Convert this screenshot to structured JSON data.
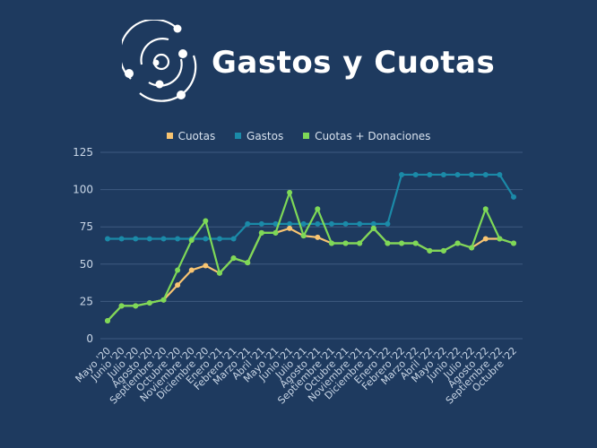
{
  "title": "Gastos y Cuotas",
  "chart_data": {
    "type": "line",
    "title": "Gastos y Cuotas",
    "legend_position": "top",
    "grid": true,
    "ylim": [
      0,
      125
    ],
    "yticks": [
      0,
      25,
      50,
      75,
      100,
      125
    ],
    "categories": [
      "Mayo '20",
      "Junio '20",
      "Julio '20",
      "Agosto '20",
      "Septiembre '20",
      "Octubre '20",
      "Noviembre '20",
      "Diciembre '20",
      "Enero '21",
      "Febrero '21",
      "Marzo '21",
      "Abril '21",
      "Mayo '21",
      "Junio '21",
      "Julio '21",
      "Agosto '21",
      "Septiembre '21",
      "Octubre '21",
      "Noviembre '21",
      "Diciembre '21",
      "Enero '22",
      "Febrero '22",
      "Marzo '22",
      "Abril '22",
      "Mayo '22",
      "Junio '22",
      "Julio '22",
      "Agosto '22",
      "Septiembre '22",
      "Octubre '22"
    ],
    "series": [
      {
        "name": "Gastos",
        "color": "#1b8aa8",
        "values": [
          67,
          67,
          67,
          67,
          67,
          67,
          67,
          67,
          67,
          67,
          77,
          77,
          77,
          77,
          77,
          77,
          77,
          77,
          77,
          77,
          77,
          110,
          110,
          110,
          110,
          110,
          110,
          110,
          110,
          95
        ]
      },
      {
        "name": "Cuotas",
        "color": "#f8c471",
        "values": [
          12,
          22,
          22,
          24,
          26,
          36,
          46,
          49,
          44,
          54,
          51,
          71,
          71,
          74,
          69,
          68,
          64,
          64,
          64,
          74,
          64,
          64,
          64,
          59,
          59,
          64,
          61,
          67,
          67,
          64
        ]
      },
      {
        "name": "Cuotas + Donaciones",
        "color": "#7ed957",
        "values": [
          12,
          22,
          22,
          24,
          26,
          46,
          66,
          79,
          44,
          54,
          51,
          71,
          71,
          98,
          69,
          87,
          64,
          64,
          64,
          74,
          64,
          64,
          64,
          59,
          59,
          64,
          61,
          87,
          67,
          64
        ]
      }
    ]
  },
  "legend": [
    "Cuotas",
    "Gastos",
    "Cuotas + Donaciones"
  ],
  "legend_colors": [
    "#f8c471",
    "#1b8aa8",
    "#7ed957"
  ]
}
